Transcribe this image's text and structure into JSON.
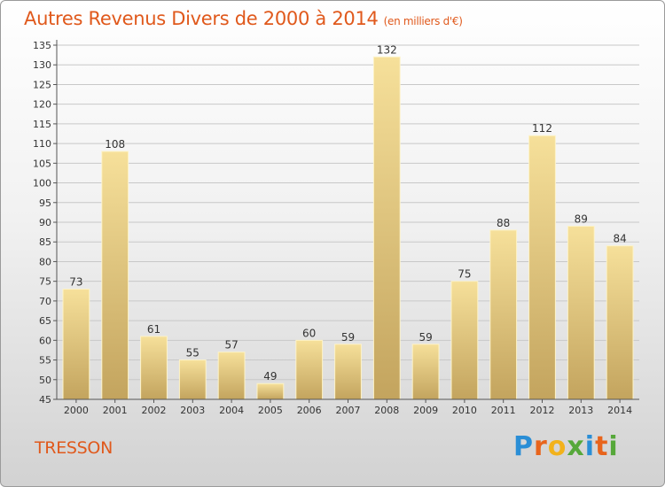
{
  "header": {
    "title": "Autres Revenus Divers de 2000 à 2014",
    "subtitle": "(en milliers d'€)"
  },
  "footer": {
    "commune": "TRESSON",
    "brand_letters": [
      "P",
      "r",
      "o",
      "x",
      "i",
      "t",
      "i"
    ],
    "brand_colors": [
      "#2a8ed6",
      "#e8641c",
      "#f2b21b",
      "#56a83a",
      "#2a8ed6",
      "#e8641c",
      "#56a83a"
    ]
  },
  "colors": {
    "bar_light": "#f6e09a",
    "bar_dark": "#c3a45e",
    "grid": "#c8c8c8",
    "title": "#e0591c"
  },
  "chart_data": {
    "type": "bar",
    "categories": [
      "2000",
      "2001",
      "2002",
      "2003",
      "2004",
      "2005",
      "2006",
      "2007",
      "2008",
      "2009",
      "2010",
      "2011",
      "2012",
      "2013",
      "2014"
    ],
    "values": [
      73,
      108,
      61,
      55,
      57,
      49,
      60,
      59,
      132,
      59,
      75,
      88,
      112,
      89,
      84
    ],
    "data_labels": [
      "73",
      "108",
      "61",
      "55",
      "57",
      "49",
      "60",
      "59",
      "132",
      "59",
      "75",
      "88",
      "112",
      "89",
      "84"
    ],
    "title": "Autres Revenus Divers de 2000 à 2014",
    "subtitle": "(en milliers d'€)",
    "xlabel": "",
    "ylabel": "",
    "ylim": [
      45,
      135
    ],
    "yticks": [
      "45",
      "50",
      "55",
      "60",
      "65",
      "70",
      "75",
      "80",
      "85",
      "90",
      "95",
      "100",
      "105",
      "110",
      "115",
      "120",
      "125",
      "130",
      "135"
    ],
    "grid": true
  }
}
